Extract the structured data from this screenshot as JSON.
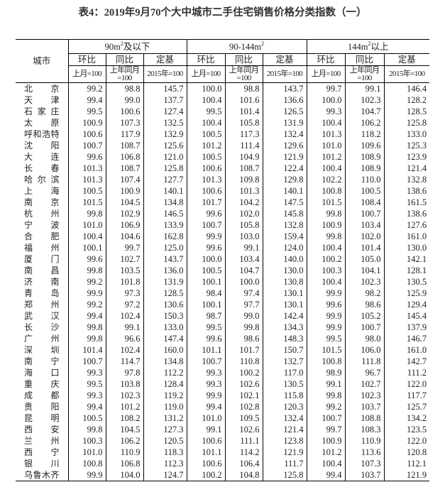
{
  "title": "表4：2019年9月70个大中城市二手住宅销售价格分类指数（一）",
  "header": {
    "city": "城市",
    "groups": [
      {
        "pre": "90m",
        "sup": "2",
        "post": "及以下"
      },
      {
        "pre": "90-144m",
        "sup": "2",
        "post": ""
      },
      {
        "pre": "144m",
        "sup": "2",
        "post": "以上"
      }
    ],
    "metrics": [
      "环比",
      "同比",
      "定基"
    ],
    "bases": [
      "上月=100",
      "上年同月=100",
      "2015年=100"
    ]
  },
  "rows": [
    [
      "北京",
      "99.2",
      "98.8",
      "145.7",
      "100.0",
      "98.8",
      "143.7",
      "99.7",
      "99.1",
      "146.4"
    ],
    [
      "天津",
      "99.4",
      "99.0",
      "137.7",
      "100.4",
      "101.6",
      "136.6",
      "100.0",
      "102.3",
      "128.2"
    ],
    [
      "石家庄",
      "99.5",
      "100.6",
      "127.4",
      "99.5",
      "101.4",
      "126.5",
      "99.3",
      "104.7",
      "128.5"
    ],
    [
      "太原",
      "100.9",
      "107.3",
      "132.5",
      "100.4",
      "105.8",
      "131.9",
      "100.4",
      "106.2",
      "125.8"
    ],
    [
      "呼和浩特",
      "100.6",
      "117.9",
      "132.9",
      "100.5",
      "117.3",
      "132.4",
      "101.3",
      "118.2",
      "133.0"
    ],
    [
      "沈阳",
      "100.7",
      "108.7",
      "125.6",
      "101.2",
      "111.4",
      "129.6",
      "101.0",
      "109.6",
      "125.3"
    ],
    [
      "大连",
      "99.6",
      "106.8",
      "121.0",
      "100.5",
      "104.9",
      "121.9",
      "101.2",
      "108.9",
      "123.9"
    ],
    [
      "长春",
      "101.3",
      "108.7",
      "125.8",
      "100.6",
      "108.7",
      "122.4",
      "100.4",
      "108.9",
      "121.4"
    ],
    [
      "哈尔滨",
      "101.3",
      "107.4",
      "127.7",
      "101.3",
      "109.8",
      "129.8",
      "102.2",
      "110.0",
      "132.8"
    ],
    [
      "上海",
      "100.5",
      "100.9",
      "140.1",
      "100.6",
      "101.3",
      "140.1",
      "100.8",
      "100.5",
      "138.6"
    ],
    [
      "南京",
      "101.5",
      "104.5",
      "134.8",
      "101.7",
      "104.2",
      "147.5",
      "101.5",
      "108.4",
      "161.5"
    ],
    [
      "杭州",
      "99.8",
      "102.9",
      "146.5",
      "99.6",
      "102.0",
      "145.8",
      "99.8",
      "100.7",
      "138.6"
    ],
    [
      "宁波",
      "101.0",
      "106.9",
      "133.9",
      "100.7",
      "105.8",
      "132.8",
      "100.9",
      "103.4",
      "127.6"
    ],
    [
      "合肥",
      "100.4",
      "104.6",
      "162.8",
      "99.9",
      "103.0",
      "159.4",
      "99.8",
      "102.0",
      "161.0"
    ],
    [
      "福州",
      "100.1",
      "99.7",
      "125.0",
      "99.6",
      "99.1",
      "124.0",
      "100.4",
      "101.4",
      "130.0"
    ],
    [
      "厦门",
      "99.6",
      "102.7",
      "143.7",
      "100.0",
      "103.4",
      "140.0",
      "100.2",
      "105.0",
      "142.1"
    ],
    [
      "南昌",
      "99.8",
      "103.5",
      "136.0",
      "100.5",
      "104.7",
      "130.0",
      "100.3",
      "104.1",
      "128.1"
    ],
    [
      "济南",
      "99.2",
      "101.8",
      "131.9",
      "100.1",
      "100.0",
      "130.8",
      "100.4",
      "102.3",
      "130.5"
    ],
    [
      "青岛",
      "99.9",
      "97.3",
      "128.5",
      "98.4",
      "97.4",
      "130.1",
      "99.9",
      "98.2",
      "125.9"
    ],
    [
      "郑州",
      "99.2",
      "97.2",
      "130.6",
      "100.1",
      "97.7",
      "130.1",
      "99.6",
      "98.6",
      "129.4"
    ],
    [
      "武汉",
      "99.4",
      "102.4",
      "150.3",
      "98.7",
      "99.0",
      "142.4",
      "99.9",
      "105.2",
      "145.4"
    ],
    [
      "长沙",
      "99.8",
      "99.1",
      "133.0",
      "99.5",
      "99.8",
      "134.3",
      "99.9",
      "100.7",
      "137.9"
    ],
    [
      "广州",
      "99.8",
      "96.6",
      "147.4",
      "99.6",
      "98.6",
      "148.3",
      "99.5",
      "98.0",
      "146.7"
    ],
    [
      "深圳",
      "101.4",
      "102.4",
      "160.0",
      "101.1",
      "101.7",
      "150.7",
      "101.5",
      "106.0",
      "161.0"
    ],
    [
      "南宁",
      "100.7",
      "114.7",
      "134.8",
      "100.7",
      "110.8",
      "132.7",
      "100.8",
      "111.8",
      "142.7"
    ],
    [
      "海口",
      "99.3",
      "97.8",
      "112.2",
      "99.3",
      "100.2",
      "117.0",
      "98.9",
      "96.7",
      "111.2"
    ],
    [
      "重庆",
      "99.5",
      "103.8",
      "128.4",
      "99.3",
      "102.6",
      "130.5",
      "99.1",
      "102.7",
      "122.0"
    ],
    [
      "成都",
      "99.3",
      "102.3",
      "119.2",
      "99.9",
      "102.1",
      "115.8",
      "99.8",
      "102.3",
      "117.7"
    ],
    [
      "贵阳",
      "99.4",
      "101.2",
      "119.0",
      "99.4",
      "102.8",
      "120.3",
      "99.2",
      "103.7",
      "125.7"
    ],
    [
      "昆明",
      "100.5",
      "108.2",
      "131.2",
      "101.0",
      "109.5",
      "132.4",
      "100.7",
      "108.8",
      "134.2"
    ],
    [
      "西安",
      "99.8",
      "104.5",
      "127.3",
      "99.1",
      "102.6",
      "121.4",
      "99.7",
      "108.3",
      "123.5"
    ],
    [
      "兰州",
      "100.3",
      "106.2",
      "120.5",
      "100.6",
      "111.1",
      "123.8",
      "100.9",
      "110.9",
      "122.0"
    ],
    [
      "西宁",
      "101.0",
      "110.9",
      "118.3",
      "101.1",
      "114.2",
      "121.9",
      "101.2",
      "113.6",
      "120.8"
    ],
    [
      "银川",
      "100.8",
      "106.8",
      "112.3",
      "100.6",
      "106.4",
      "111.7",
      "100.4",
      "107.3",
      "112.1"
    ],
    [
      "乌鲁木齐",
      "99.9",
      "104.0",
      "124.7",
      "100.2",
      "104.8",
      "125.8",
      "99.4",
      "103.7",
      "121.9"
    ]
  ]
}
